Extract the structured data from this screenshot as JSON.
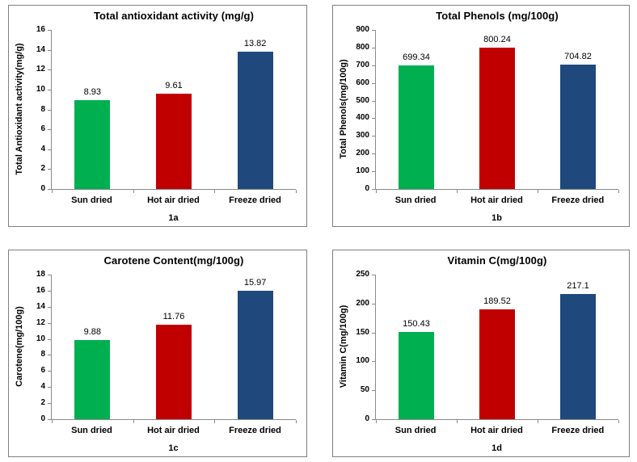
{
  "colors": {
    "sun_dried_bar": "#00B050",
    "hot_air_dried_bar": "#C00000",
    "freeze_dried_bar": "#1F497D",
    "axis": "#8A8A8A",
    "panel_border": "#7F7F7F",
    "text": "#000000"
  },
  "chart_data": [
    {
      "type": "bar",
      "title": "Total antioxidant activity (mg/g)",
      "ylabel": "Total Antioxidant activity(mg/g)",
      "xlabel": "",
      "caption": "1a",
      "categories": [
        "Sun dried",
        "Hot air dried",
        "Freeze dried"
      ],
      "values": [
        8.93,
        9.61,
        13.82
      ],
      "ylim": [
        0,
        16
      ],
      "yticks": [
        0,
        2,
        4,
        6,
        8,
        10,
        12,
        14,
        16
      ],
      "bar_colors": [
        "#00B050",
        "#C00000",
        "#1F497D"
      ],
      "grid": false,
      "legend": "none"
    },
    {
      "type": "bar",
      "title": "Total Phenols (mg/100g)",
      "ylabel": "Total Phenols(mg/100g)",
      "xlabel": "",
      "caption": "1b",
      "categories": [
        "Sun dried",
        "Hot air dried",
        "Freeze dried"
      ],
      "values": [
        699.34,
        800.24,
        704.82
      ],
      "ylim": [
        0,
        900
      ],
      "yticks": [
        0,
        100,
        200,
        300,
        400,
        500,
        600,
        700,
        800,
        900
      ],
      "bar_colors": [
        "#00B050",
        "#C00000",
        "#1F497D"
      ],
      "grid": false,
      "legend": "none"
    },
    {
      "type": "bar",
      "title": "Carotene Content(mg/100g)",
      "ylabel": "Carotene(mg/100g)",
      "xlabel": "",
      "caption": "1c",
      "categories": [
        "Sun dried",
        "Hot air dried",
        "Freeze dried"
      ],
      "values": [
        9.88,
        11.76,
        15.97
      ],
      "ylim": [
        0,
        18
      ],
      "yticks": [
        0,
        2,
        4,
        6,
        8,
        10,
        12,
        14,
        16,
        18
      ],
      "bar_colors": [
        "#00B050",
        "#C00000",
        "#1F497D"
      ],
      "grid": false,
      "legend": "none"
    },
    {
      "type": "bar",
      "title": "Vitamin C(mg/100g)",
      "ylabel": "Vitamin C(mg/100g)",
      "xlabel": "",
      "caption": "1d",
      "categories": [
        "Sun dried",
        "Hot air dried",
        "Freeze dried"
      ],
      "values": [
        150.43,
        189.52,
        217.1
      ],
      "ylim": [
        0,
        250
      ],
      "yticks": [
        0,
        50,
        100,
        150,
        200,
        250
      ],
      "bar_colors": [
        "#00B050",
        "#C00000",
        "#1F497D"
      ],
      "grid": false,
      "legend": "none"
    }
  ]
}
